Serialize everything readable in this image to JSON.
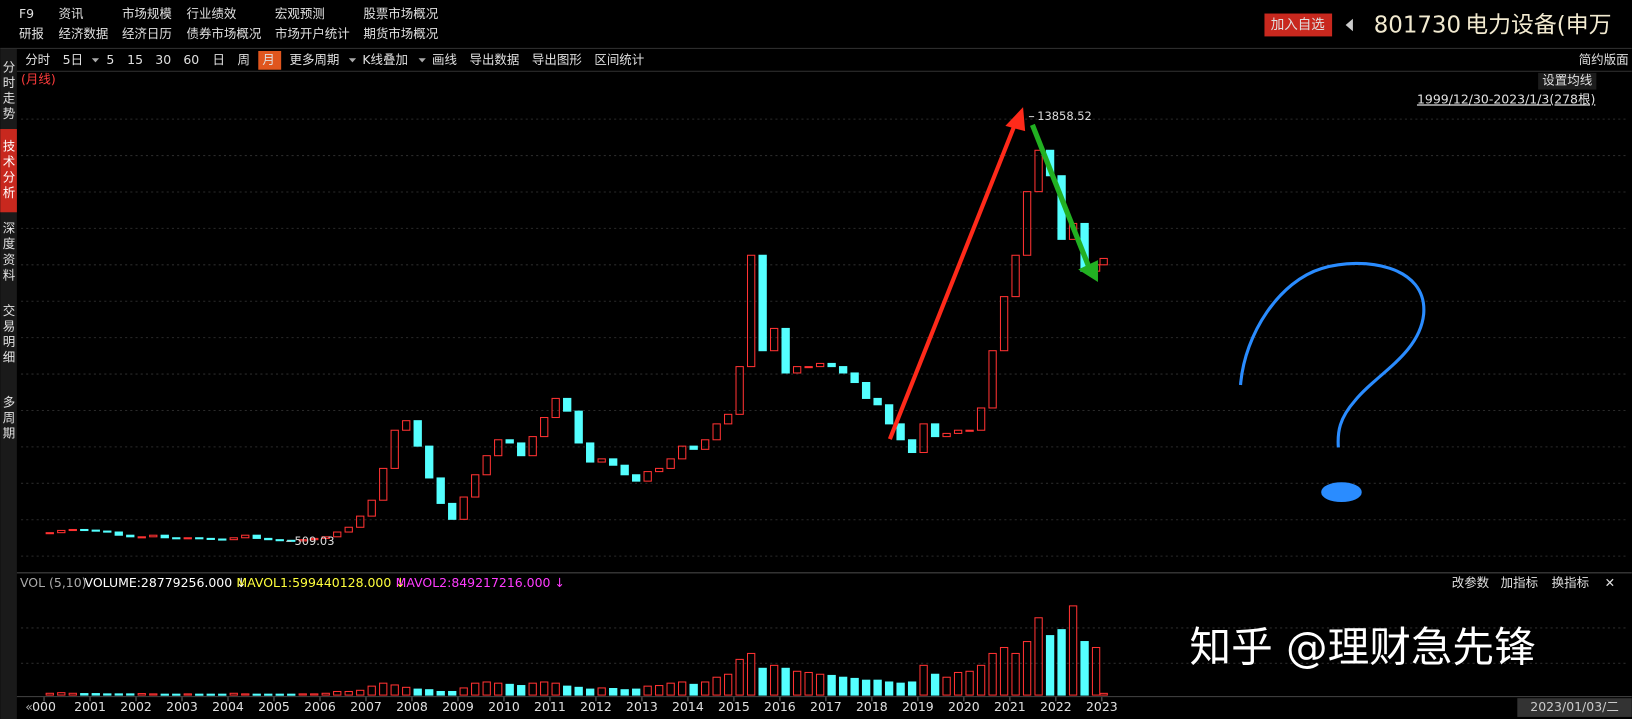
{
  "header": {
    "menu": [
      [
        "F9",
        "资讯",
        "市场规模",
        "行业绩效",
        "宏观预测",
        "股票市场概况"
      ],
      [
        "研报",
        "经济数据",
        "经济日历",
        "债券市场概况",
        "市场开户统计",
        "期货市场概况"
      ]
    ],
    "add_button": "加入自选",
    "code": "801730",
    "name": "电力设备(申万"
  },
  "side_tabs": [
    "分时走势",
    "技术分析",
    "深度资料",
    "交易明细",
    "多周期"
  ],
  "toolbar": [
    "分时",
    "5日",
    "5",
    "15",
    "30",
    "60",
    "日",
    "周",
    "月",
    "更多周期",
    "K线叠加",
    "画线",
    "导出数据",
    "导出图形",
    "区间统计"
  ],
  "layout_button": "简约版面",
  "period_label": "(月线)",
  "ma_button": "设置均线",
  "range_label": "1999/12/30-2023/1/3(278根)",
  "indicator": {
    "name": "VOL (5,10)",
    "volume": "VOLUME:28779256.000 ↓",
    "mavol1": "MAVOL1:599440128.000 ↓",
    "mavol2": "MAVOL2:849217216.000 ↓",
    "buttons": [
      "改参数",
      "加指标",
      "换指标"
    ]
  },
  "date_box": "2023/01/03/二",
  "watermark": "知乎 @理财急先锋",
  "chart_data": {
    "type": "candlestick",
    "x": [
      2000.125,
      2000.375,
      2000.625,
      2000.875,
      2001.125,
      2001.375,
      2001.625,
      2001.875,
      2002.125,
      2002.375,
      2002.625,
      2002.875,
      2003.125,
      2003.375,
      2003.625,
      2003.875,
      2004.125,
      2004.375,
      2004.625,
      2004.875,
      2005.125,
      2005.375,
      2005.625,
      2005.875,
      2006.125,
      2006.375,
      2006.625,
      2006.875,
      2007.125,
      2007.375,
      2007.625,
      2007.875,
      2008.125,
      2008.375,
      2008.625,
      2008.875,
      2009.125,
      2009.375,
      2009.625,
      2009.875,
      2010.125,
      2010.375,
      2010.625,
      2010.875,
      2011.125,
      2011.375,
      2011.625,
      2011.875,
      2012.125,
      2012.375,
      2012.625,
      2012.875,
      2013.125,
      2013.375,
      2013.625,
      2013.875,
      2014.125,
      2014.375,
      2014.625,
      2014.875,
      2015.125,
      2015.375,
      2015.625,
      2015.875,
      2016.125,
      2016.375,
      2016.625,
      2016.875,
      2017.125,
      2017.375,
      2017.625,
      2017.875,
      2018.125,
      2018.375,
      2018.625,
      2018.875,
      2019.125,
      2019.375,
      2019.625,
      2019.875,
      2020.125,
      2020.375,
      2020.625,
      2020.875,
      2021.125,
      2021.375,
      2021.625,
      2021.875,
      2022.125,
      2022.375,
      2022.625,
      2022.875,
      2023.04
    ],
    "close": [
      780,
      850,
      880,
      860,
      830,
      800,
      700,
      650,
      650,
      700,
      620,
      600,
      620,
      600,
      580,
      560,
      620,
      700,
      600,
      560,
      540,
      520,
      560,
      600,
      650,
      800,
      950,
      1300,
      1800,
      2800,
      4000,
      4300,
      3500,
      2500,
      1700,
      1200,
      1900,
      2600,
      3200,
      3700,
      3600,
      3200,
      3800,
      4400,
      5000,
      4600,
      3600,
      3000,
      3100,
      2900,
      2600,
      2400,
      2700,
      2800,
      3100,
      3500,
      3400,
      3700,
      4200,
      4500,
      6000,
      9500,
      6500,
      7200,
      5800,
      6000,
      6000,
      6100,
      6000,
      5800,
      5500,
      5000,
      4800,
      4200,
      3700,
      3300,
      4200,
      3800,
      3900,
      4000,
      4000,
      4700,
      6500,
      8200,
      9500,
      11500,
      12800,
      12000,
      10000,
      10500,
      9000,
      9200,
      9400
    ],
    "volume": [
      30000000,
      40000000,
      30000000,
      25000000,
      25000000,
      20000000,
      20000000,
      20000000,
      25000000,
      20000000,
      15000000,
      15000000,
      20000000,
      15000000,
      15000000,
      15000000,
      30000000,
      20000000,
      15000000,
      15000000,
      15000000,
      15000000,
      20000000,
      20000000,
      30000000,
      60000000,
      60000000,
      80000000,
      150000000,
      200000000,
      170000000,
      130000000,
      100000000,
      90000000,
      60000000,
      60000000,
      120000000,
      200000000,
      220000000,
      200000000,
      180000000,
      160000000,
      200000000,
      220000000,
      200000000,
      150000000,
      130000000,
      100000000,
      120000000,
      110000000,
      90000000,
      100000000,
      150000000,
      160000000,
      200000000,
      220000000,
      180000000,
      220000000,
      300000000,
      350000000,
      600000000,
      700000000,
      450000000,
      500000000,
      450000000,
      400000000,
      380000000,
      350000000,
      330000000,
      300000000,
      280000000,
      250000000,
      250000000,
      220000000,
      200000000,
      220000000,
      500000000,
      350000000,
      300000000,
      380000000,
      400000000,
      500000000,
      700000000,
      800000000,
      700000000,
      900000000,
      1300000000,
      1000000000,
      1100000000,
      1500000000,
      900000000,
      800000000,
      28779256
    ],
    "xlim": [
      1999.5,
      2034.5
    ],
    "xticks": [
      {
        "value": 2000,
        "label": "000"
      },
      2001,
      2002,
      2003,
      2004,
      2005,
      2006,
      2007,
      2008,
      2009,
      2010,
      2011,
      2012,
      2013,
      2014,
      2015,
      2016,
      2017,
      2018,
      2019,
      2020,
      2021,
      2022,
      2023
    ],
    "ylim": [
      -400,
      15300
    ],
    "volume_ylim": [
      0,
      1750000000
    ],
    "annotations": [
      {
        "value": 13858.52,
        "x": 2021.55
      },
      {
        "value": 509.03,
        "x": 2005.4
      }
    ],
    "up_color": "#ff3232",
    "down_color": "#54ffff"
  }
}
